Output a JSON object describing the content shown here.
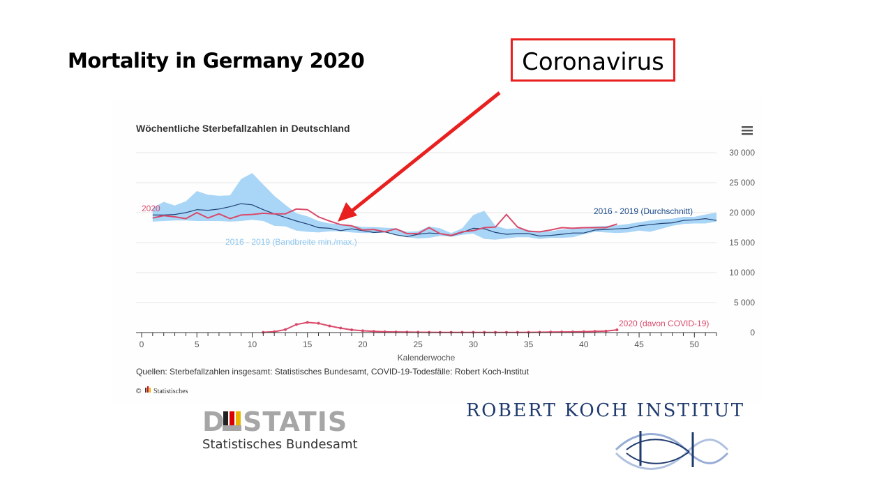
{
  "slide": {
    "title": "Mortality in Germany 2020",
    "callout": "Coronavirus",
    "accent_red": "#e8201f"
  },
  "logos": {
    "destatis_word": "DESTATIS",
    "destatis_sub": "Statistisches Bundesamt",
    "rki_word": "ROBERT KOCH INSTITUT"
  },
  "chart_data": {
    "type": "line",
    "title": "Wöchentliche Sterbefallzahlen in Deutschland",
    "xlabel": "Kalenderwoche",
    "ylabel": "",
    "xlim": [
      0,
      52
    ],
    "ylim": [
      0,
      30000
    ],
    "x_ticks": [
      0,
      5,
      10,
      15,
      20,
      25,
      30,
      35,
      40,
      45,
      50
    ],
    "y_ticks": [
      0,
      5000,
      10000,
      15000,
      20000,
      25000,
      30000
    ],
    "y_tick_labels": [
      "0",
      "5 000",
      "10 000",
      "15 000",
      "20 000",
      "25 000",
      "30 000"
    ],
    "grid": "horizontal",
    "source": "Quellen: Sterbefallzahlen insgesamt: Statistisches Bundesamt, COVID-19-Todesfälle: Robert Koch-Institut",
    "credits": "Statistisches",
    "band": {
      "name": "2016 - 2019 (Bandbreite min./max.)",
      "color": "#a9d6f7",
      "x": [
        1,
        2,
        3,
        4,
        5,
        6,
        7,
        8,
        9,
        10,
        11,
        12,
        13,
        14,
        15,
        16,
        17,
        18,
        19,
        20,
        21,
        22,
        23,
        24,
        25,
        26,
        27,
        28,
        29,
        30,
        31,
        32,
        33,
        34,
        35,
        36,
        37,
        38,
        39,
        40,
        41,
        42,
        43,
        44,
        45,
        46,
        47,
        48,
        49,
        50,
        51,
        52
      ],
      "low": [
        18500,
        18600,
        18700,
        18700,
        18600,
        18600,
        18600,
        18500,
        18600,
        18800,
        18600,
        17800,
        17700,
        17000,
        16800,
        16700,
        16900,
        16900,
        16700,
        16600,
        16600,
        16700,
        16400,
        15900,
        15700,
        15800,
        16100,
        16000,
        16300,
        16500,
        15600,
        15500,
        15700,
        15900,
        15900,
        15600,
        15800,
        15800,
        15900,
        16400,
        16800,
        16700,
        16600,
        16700,
        17000,
        16800,
        17300,
        17800,
        18100,
        18200,
        18200,
        18500
      ],
      "high": [
        20800,
        21800,
        21200,
        21900,
        23600,
        23000,
        22800,
        22900,
        25600,
        26600,
        24700,
        22800,
        21300,
        19900,
        19400,
        18600,
        18200,
        18100,
        17900,
        17600,
        17600,
        17500,
        17400,
        16800,
        16900,
        17700,
        17400,
        16600,
        17400,
        19600,
        20300,
        17800,
        17300,
        17400,
        17100,
        16800,
        16900,
        17200,
        17300,
        17600,
        17700,
        17800,
        17900,
        18100,
        18400,
        18700,
        18900,
        19000,
        19300,
        19300,
        19700,
        20000
      ]
    },
    "series": [
      {
        "name": "2016 - 2019 (Durchschnitt)",
        "color": "#1f3f73",
        "x": [
          1,
          2,
          3,
          4,
          5,
          6,
          7,
          8,
          9,
          10,
          11,
          12,
          13,
          14,
          15,
          16,
          17,
          18,
          19,
          20,
          21,
          22,
          23,
          24,
          25,
          26,
          27,
          28,
          29,
          30,
          31,
          32,
          33,
          34,
          35,
          36,
          37,
          38,
          39,
          40,
          41,
          42,
          43,
          44,
          45,
          46,
          47,
          48,
          49,
          50,
          51,
          52
        ],
        "values": [
          19600,
          19600,
          19700,
          20000,
          20500,
          20400,
          20600,
          21000,
          21500,
          21300,
          20500,
          19800,
          19200,
          18600,
          18100,
          17500,
          17400,
          17000,
          17300,
          17000,
          16700,
          16800,
          16300,
          16000,
          16400,
          16600,
          16500,
          16100,
          16700,
          17400,
          17300,
          16700,
          16400,
          16500,
          16500,
          16100,
          16200,
          16400,
          16600,
          16600,
          17100,
          17200,
          17300,
          17400,
          17800,
          18000,
          18200,
          18300,
          18700,
          18800,
          19000,
          18700
        ]
      },
      {
        "name": "2020",
        "color": "#d94a6a",
        "x": [
          1,
          2,
          3,
          4,
          5,
          6,
          7,
          8,
          9,
          10,
          11,
          12,
          13,
          14,
          15,
          16,
          17,
          18,
          19,
          20,
          21,
          22,
          23,
          24,
          25,
          26,
          27,
          28,
          29,
          30,
          31,
          32,
          33,
          34,
          35,
          36,
          37,
          38,
          39,
          40,
          41,
          42,
          43
        ],
        "values": [
          19100,
          19500,
          19300,
          19000,
          20000,
          19100,
          19800,
          19000,
          19600,
          19700,
          19900,
          19800,
          19800,
          20600,
          20500,
          19300,
          18600,
          18000,
          17800,
          17100,
          17200,
          16800,
          17300,
          16500,
          16500,
          17500,
          16500,
          16200,
          16800,
          17000,
          17500,
          17600,
          19700,
          17600,
          16900,
          16800,
          17100,
          17500,
          17400,
          17500,
          17500,
          17500,
          18100
        ]
      },
      {
        "name": "2020 (davon COVID-19)",
        "color": "#d94a6a",
        "x": [
          11,
          12,
          13,
          14,
          15,
          16,
          17,
          18,
          19,
          20,
          21,
          22,
          23,
          24,
          25,
          26,
          27,
          28,
          29,
          30,
          31,
          32,
          33,
          34,
          35,
          36,
          37,
          38,
          39,
          40,
          41,
          42,
          43
        ],
        "values": [
          50,
          150,
          500,
          1350,
          1700,
          1550,
          1100,
          750,
          450,
          300,
          200,
          130,
          100,
          80,
          60,
          50,
          40,
          40,
          40,
          40,
          40,
          40,
          40,
          40,
          50,
          60,
          80,
          100,
          120,
          150,
          200,
          250,
          450
        ]
      }
    ],
    "annotations": {
      "label_2020": "2020",
      "label_avg": "2016 - 2019 (Durchschnitt)",
      "label_band": "2016 - 2019 (Bandbreite min./max.)",
      "label_covid": "2020 (davon COVID-19)"
    }
  }
}
